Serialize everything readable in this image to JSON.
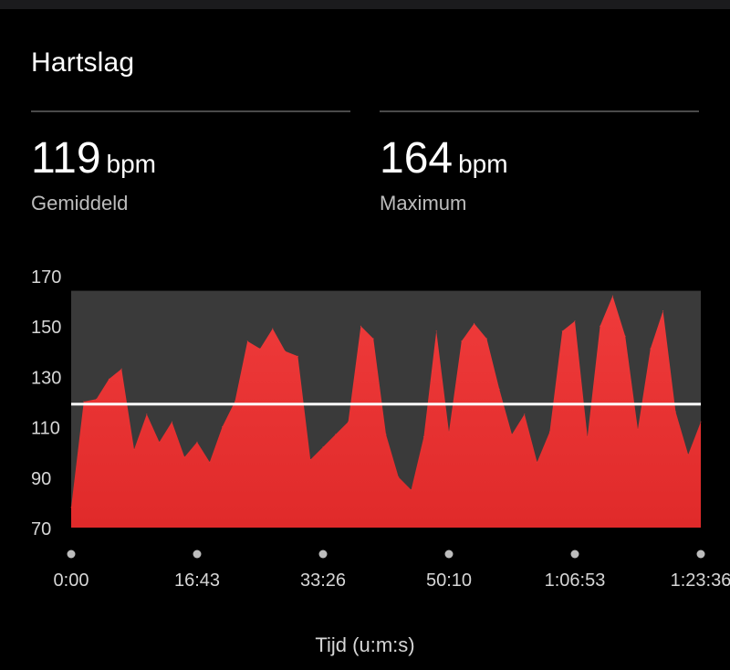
{
  "title": "Hartslag",
  "stats": [
    {
      "value": "119",
      "unit": "bpm",
      "label": "Gemiddeld"
    },
    {
      "value": "164",
      "unit": "bpm",
      "label": "Maximum"
    }
  ],
  "colors": {
    "fill": "#ef3b3b",
    "fill_dark": "#e02a2a",
    "max_band": "#3a3a3a",
    "average_line": "#ffffff"
  },
  "chart_data": {
    "type": "area",
    "xlabel": "Tijd (u:m:s)",
    "ylabel": "",
    "ylim": [
      70,
      170
    ],
    "yticks": [
      70,
      90,
      110,
      130,
      150,
      170
    ],
    "xticks": [
      "0:00",
      "16:43",
      "33:26",
      "50:10",
      "1:06:53",
      "1:23:36"
    ],
    "x": [
      "0:00",
      "1:40",
      "3:20",
      "5:00",
      "6:40",
      "8:20",
      "10:00",
      "11:40",
      "13:20",
      "15:00",
      "16:43",
      "18:20",
      "20:00",
      "21:40",
      "23:20",
      "25:00",
      "26:40",
      "28:20",
      "30:00",
      "31:40",
      "33:26",
      "35:00",
      "36:40",
      "38:20",
      "40:00",
      "41:40",
      "43:20",
      "45:00",
      "46:40",
      "48:20",
      "50:10",
      "51:40",
      "53:20",
      "55:00",
      "56:40",
      "58:20",
      "1:00:00",
      "1:01:40",
      "1:03:20",
      "1:05:00",
      "1:06:53",
      "1:08:20",
      "1:10:00",
      "1:11:40",
      "1:13:20",
      "1:15:00",
      "1:16:40",
      "1:18:20",
      "1:20:00",
      "1:21:40",
      "1:23:36"
    ],
    "values": [
      78,
      120,
      121,
      129,
      133,
      101,
      115,
      104,
      112,
      98,
      104,
      96,
      110,
      120,
      144,
      141,
      149,
      140,
      138,
      97,
      102,
      107,
      112,
      150,
      145,
      107,
      90,
      85,
      106,
      148,
      108,
      144,
      151,
      145,
      125,
      107,
      115,
      96,
      108,
      148,
      152,
      106,
      150,
      162,
      146,
      109,
      141,
      156,
      116,
      99,
      112
    ],
    "average": 119,
    "maximum": 164,
    "series": [
      {
        "values_ref": "values"
      }
    ]
  }
}
